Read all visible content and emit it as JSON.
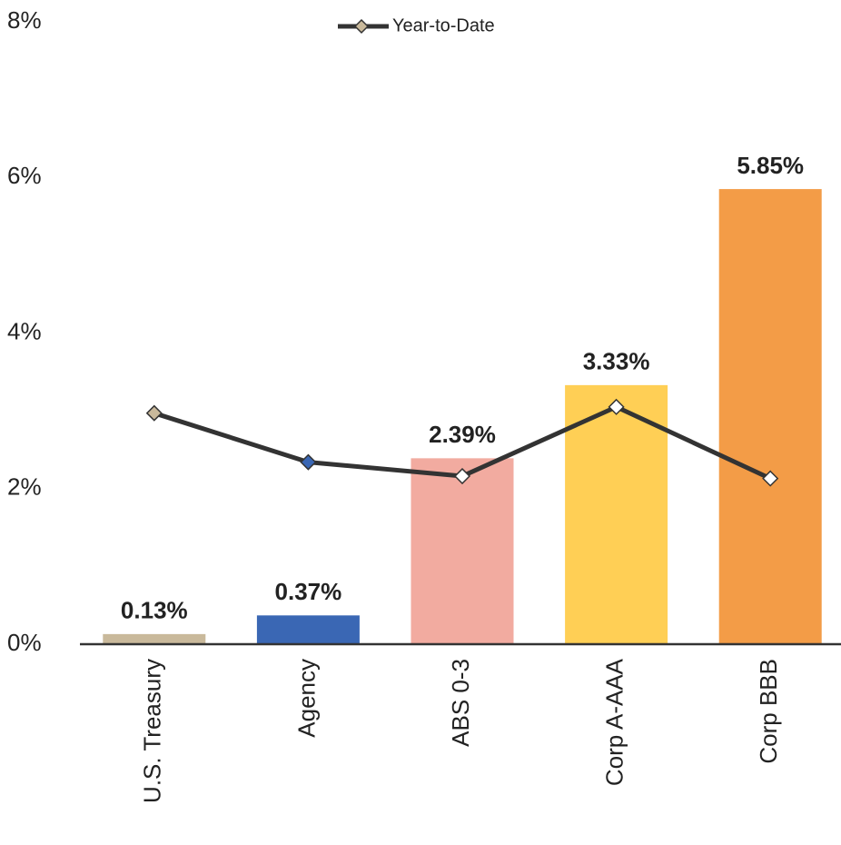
{
  "chart_data": {
    "type": "combo",
    "categories": [
      "U.S. Treasury",
      "Agency",
      "ABS 0-3",
      "Corp A-AAA",
      "Corp BBB"
    ],
    "bars": {
      "values": [
        0.13,
        0.37,
        2.39,
        3.33,
        5.85
      ],
      "value_labels": [
        "0.13%",
        "0.37%",
        "2.39%",
        "3.33%",
        "5.85%"
      ],
      "colors": [
        "#c9b99b",
        "#3a67b4",
        "#f2aba0",
        "#ffcf55",
        "#f39c47"
      ]
    },
    "series": [
      {
        "name": "Year-to-Date",
        "type": "line",
        "color": "#333333",
        "values": [
          2.97,
          2.34,
          2.16,
          3.05,
          2.13
        ],
        "marker_colors": [
          "#c9b99b",
          "#3a67b4",
          "#ffffff",
          "#ffffff",
          "#ffffff"
        ]
      }
    ],
    "ylim": [
      0,
      8
    ],
    "yticks": [
      {
        "value": 0,
        "label": "0%"
      },
      {
        "value": 2,
        "label": "2%"
      },
      {
        "value": 4,
        "label": "4%"
      },
      {
        "value": 6,
        "label": "6%"
      },
      {
        "value": 8,
        "label": "8%"
      }
    ],
    "grid": false,
    "legend": "top"
  }
}
